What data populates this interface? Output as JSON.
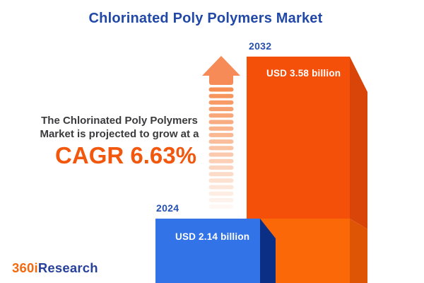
{
  "title": {
    "text": "Chlorinated Poly Polymers Market"
  },
  "annotation": {
    "line1": "The Chlorinated Poly Polymers",
    "line2": "Market is projected to grow at a",
    "cagr": "CAGR 6.63%"
  },
  "bars": [
    {
      "year": "2024",
      "value_label": "USD 2.14 billion",
      "value_usd_billion": 2.14,
      "front_color": "#3273E8",
      "side_color": "#0A2F85"
    },
    {
      "year": "2032",
      "value_label": "USD 3.58 billion",
      "value_usd_billion": 3.58,
      "front_color": "#F4500A",
      "front_color_lower": "#FB6808",
      "side_color": "#D94509",
      "side_color_lower": "#DE5506"
    }
  ],
  "arrow": {
    "head_color": "#F68B58",
    "stripe_color": "#F78F55",
    "stripe_count": 19
  },
  "logo": {
    "part1": "360i",
    "part2": "Research",
    "part1_color": "#F26A10",
    "part2_color": "#27419B"
  },
  "colors": {
    "background": "#FFFFFF",
    "title_text": "#2148A7",
    "year_label": "#2550AF",
    "annotation_text": "#3B3B3D",
    "cagr_text": "#F2570E",
    "bar_value_text": "#FFFFFF"
  },
  "chart_data": {
    "type": "bar",
    "title": "Chlorinated Poly Polymers Market",
    "categories": [
      "2024",
      "2032"
    ],
    "values": [
      2.14,
      3.58
    ],
    "value_labels": [
      "USD 2.14 billion",
      "USD 3.58 billion"
    ],
    "unit": "USD billion",
    "cagr_percent": 6.63,
    "annotation": "The Chlorinated Poly Polymers Market is projected to grow at a CAGR 6.63%",
    "series_colors": [
      "#3273E8",
      "#F4500A"
    ],
    "orientation": "vertical",
    "axes": "none",
    "grid": false,
    "legend": "none"
  }
}
